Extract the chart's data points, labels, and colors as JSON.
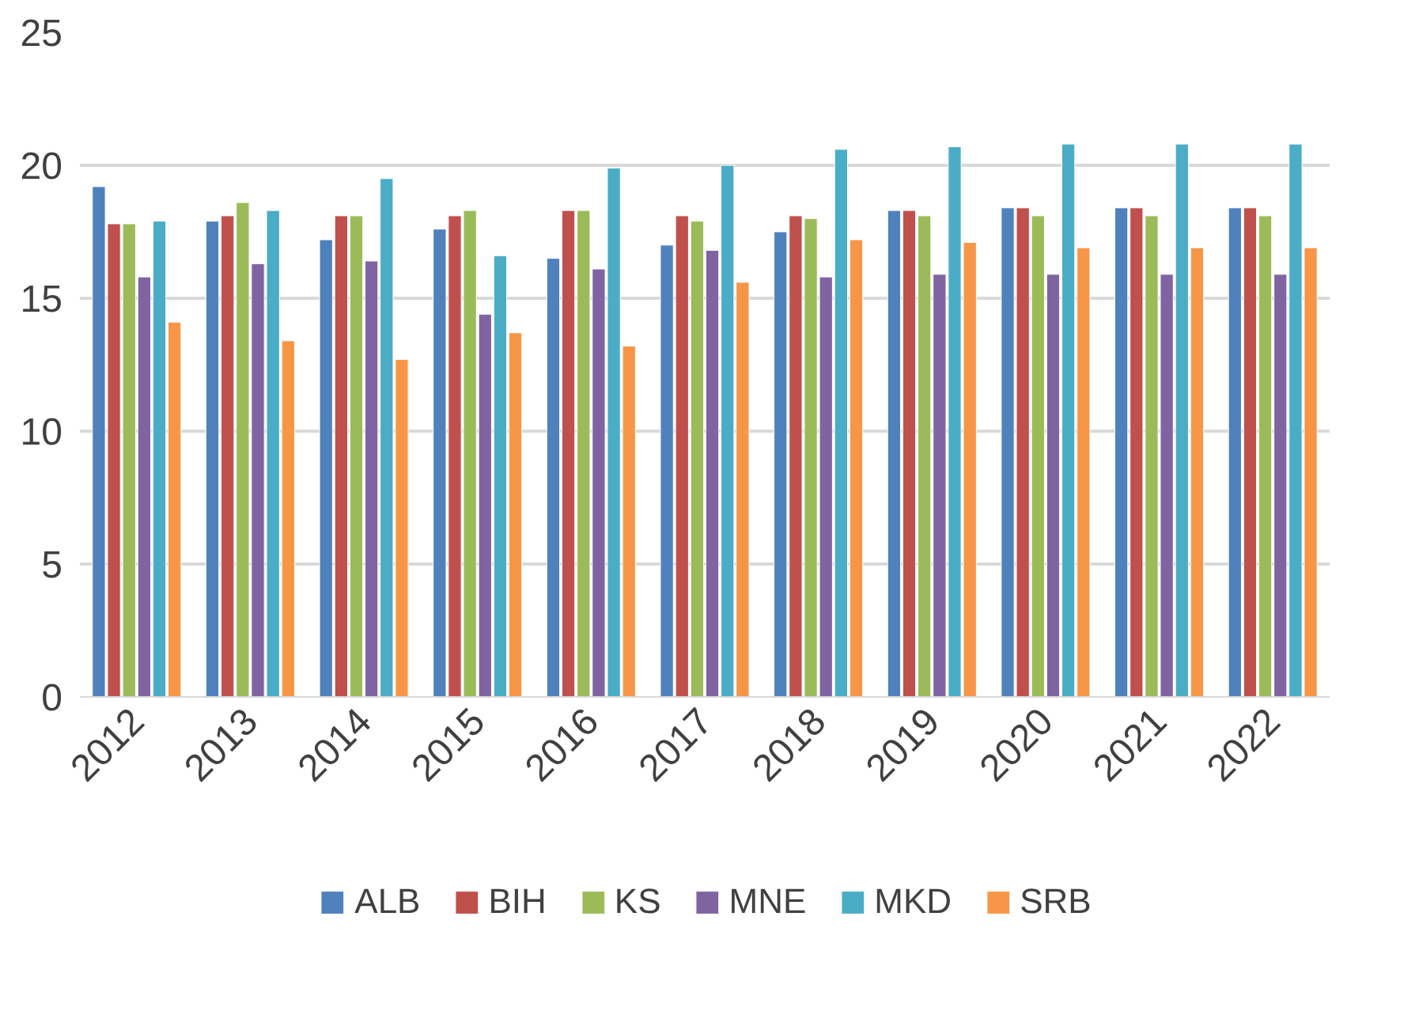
{
  "chart_data": {
    "type": "bar",
    "categories": [
      "2012",
      "2013",
      "2014",
      "2015",
      "2016",
      "2017",
      "2018",
      "2019",
      "2020",
      "2021",
      "2022"
    ],
    "series": [
      {
        "name": "ALB",
        "color": "#4f81bd",
        "values": [
          19.2,
          17.9,
          17.2,
          17.6,
          16.5,
          17.0,
          17.5,
          18.3,
          18.4,
          18.4,
          18.4
        ]
      },
      {
        "name": "BIH",
        "color": "#c0504d",
        "values": [
          17.8,
          18.1,
          18.1,
          18.1,
          18.3,
          18.1,
          18.1,
          18.3,
          18.4,
          18.4,
          18.4
        ]
      },
      {
        "name": "KS",
        "color": "#9bbb59",
        "values": [
          17.8,
          18.6,
          18.1,
          18.3,
          18.3,
          17.9,
          18.0,
          18.1,
          18.1,
          18.1,
          18.1
        ]
      },
      {
        "name": "MNE",
        "color": "#8064a2",
        "values": [
          15.8,
          16.3,
          16.4,
          14.4,
          16.1,
          16.8,
          15.8,
          15.9,
          15.9,
          15.9,
          15.9
        ]
      },
      {
        "name": "MKD",
        "color": "#4bacc6",
        "values": [
          17.9,
          18.3,
          19.5,
          16.6,
          19.9,
          20.0,
          20.6,
          20.7,
          20.8,
          20.8,
          20.8
        ]
      },
      {
        "name": "SRB",
        "color": "#f79646",
        "values": [
          14.1,
          13.4,
          12.7,
          13.7,
          13.2,
          15.6,
          17.2,
          17.1,
          16.9,
          16.9,
          16.9
        ]
      }
    ],
    "ylim": [
      0,
      25
    ],
    "yticks": [
      0,
      5,
      10,
      15,
      20,
      25
    ],
    "grid": "y",
    "legend": "bottom"
  }
}
